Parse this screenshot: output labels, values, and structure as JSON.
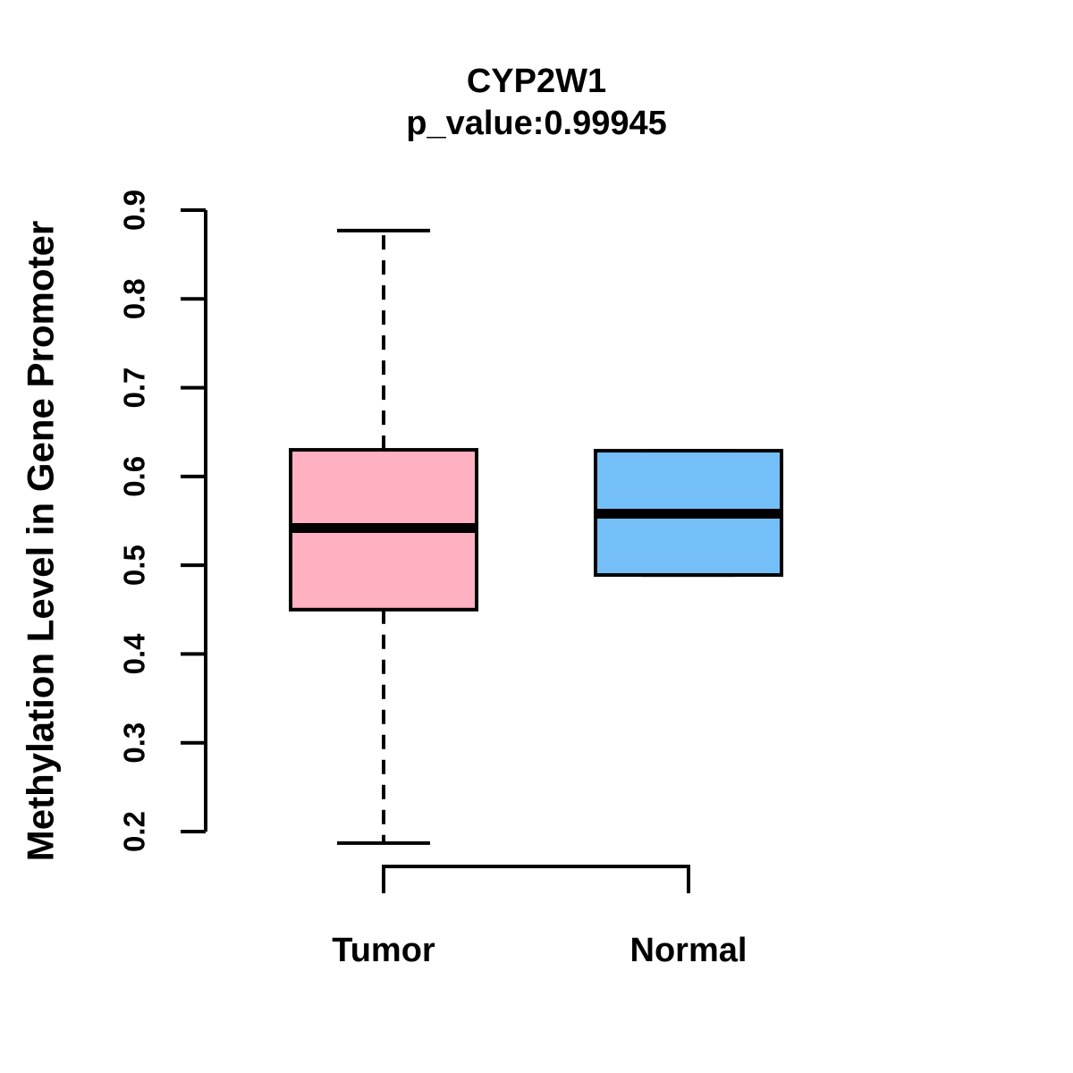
{
  "chart_data": {
    "type": "boxplot",
    "title": "CYP2W1",
    "subtitle": "p_value:0.99945",
    "ylabel": "Methylation Level in Gene Promoter",
    "xlabel": "",
    "categories": [
      "Tumor",
      "Normal"
    ],
    "ylim": [
      0.2,
      0.9
    ],
    "yticks": [
      0.2,
      0.3,
      0.4,
      0.5,
      0.6,
      0.7,
      0.8,
      0.9
    ],
    "grid": false,
    "legend": "none",
    "orientation": "vertical",
    "whisker_style": "dashed",
    "series": [
      {
        "name": "Tumor",
        "min": 0.187,
        "q1": 0.45,
        "median": 0.542,
        "q3": 0.63,
        "max": 0.877,
        "fill_color": "#FFB1C1"
      },
      {
        "name": "Normal",
        "min": 0.489,
        "q1": 0.489,
        "median": 0.558,
        "q3": 0.629,
        "max": 0.629,
        "fill_color": "#75BFF8"
      }
    ],
    "stroke_color": "#000000",
    "background": "#FFFFFF"
  }
}
